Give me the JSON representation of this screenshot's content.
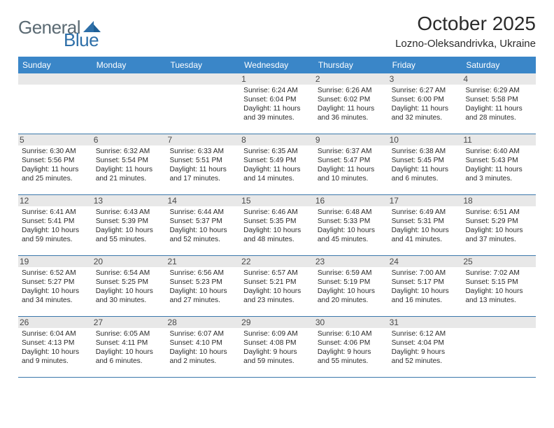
{
  "logo": {
    "general": "General",
    "blue": "Blue"
  },
  "title": "October 2025",
  "location": "Lozno-Oleksandrivka, Ukraine",
  "colors": {
    "header_bg": "#3a86c8",
    "header_fg": "#ffffff",
    "rule": "#3a77aa",
    "daynum_bg": "#e8e8e8",
    "text": "#2b2b2b",
    "logo_gray": "#5b6a73",
    "logo_blue": "#2e6fa8"
  },
  "dow": [
    "Sunday",
    "Monday",
    "Tuesday",
    "Wednesday",
    "Thursday",
    "Friday",
    "Saturday"
  ],
  "weeks": [
    [
      {
        "n": "",
        "sr": "",
        "ss": "",
        "dl": ""
      },
      {
        "n": "",
        "sr": "",
        "ss": "",
        "dl": ""
      },
      {
        "n": "",
        "sr": "",
        "ss": "",
        "dl": ""
      },
      {
        "n": "1",
        "sr": "6:24 AM",
        "ss": "6:04 PM",
        "dl": "11 hours and 39 minutes."
      },
      {
        "n": "2",
        "sr": "6:26 AM",
        "ss": "6:02 PM",
        "dl": "11 hours and 36 minutes."
      },
      {
        "n": "3",
        "sr": "6:27 AM",
        "ss": "6:00 PM",
        "dl": "11 hours and 32 minutes."
      },
      {
        "n": "4",
        "sr": "6:29 AM",
        "ss": "5:58 PM",
        "dl": "11 hours and 28 minutes."
      }
    ],
    [
      {
        "n": "5",
        "sr": "6:30 AM",
        "ss": "5:56 PM",
        "dl": "11 hours and 25 minutes."
      },
      {
        "n": "6",
        "sr": "6:32 AM",
        "ss": "5:54 PM",
        "dl": "11 hours and 21 minutes."
      },
      {
        "n": "7",
        "sr": "6:33 AM",
        "ss": "5:51 PM",
        "dl": "11 hours and 17 minutes."
      },
      {
        "n": "8",
        "sr": "6:35 AM",
        "ss": "5:49 PM",
        "dl": "11 hours and 14 minutes."
      },
      {
        "n": "9",
        "sr": "6:37 AM",
        "ss": "5:47 PM",
        "dl": "11 hours and 10 minutes."
      },
      {
        "n": "10",
        "sr": "6:38 AM",
        "ss": "5:45 PM",
        "dl": "11 hours and 6 minutes."
      },
      {
        "n": "11",
        "sr": "6:40 AM",
        "ss": "5:43 PM",
        "dl": "11 hours and 3 minutes."
      }
    ],
    [
      {
        "n": "12",
        "sr": "6:41 AM",
        "ss": "5:41 PM",
        "dl": "10 hours and 59 minutes."
      },
      {
        "n": "13",
        "sr": "6:43 AM",
        "ss": "5:39 PM",
        "dl": "10 hours and 55 minutes."
      },
      {
        "n": "14",
        "sr": "6:44 AM",
        "ss": "5:37 PM",
        "dl": "10 hours and 52 minutes."
      },
      {
        "n": "15",
        "sr": "6:46 AM",
        "ss": "5:35 PM",
        "dl": "10 hours and 48 minutes."
      },
      {
        "n": "16",
        "sr": "6:48 AM",
        "ss": "5:33 PM",
        "dl": "10 hours and 45 minutes."
      },
      {
        "n": "17",
        "sr": "6:49 AM",
        "ss": "5:31 PM",
        "dl": "10 hours and 41 minutes."
      },
      {
        "n": "18",
        "sr": "6:51 AM",
        "ss": "5:29 PM",
        "dl": "10 hours and 37 minutes."
      }
    ],
    [
      {
        "n": "19",
        "sr": "6:52 AM",
        "ss": "5:27 PM",
        "dl": "10 hours and 34 minutes."
      },
      {
        "n": "20",
        "sr": "6:54 AM",
        "ss": "5:25 PM",
        "dl": "10 hours and 30 minutes."
      },
      {
        "n": "21",
        "sr": "6:56 AM",
        "ss": "5:23 PM",
        "dl": "10 hours and 27 minutes."
      },
      {
        "n": "22",
        "sr": "6:57 AM",
        "ss": "5:21 PM",
        "dl": "10 hours and 23 minutes."
      },
      {
        "n": "23",
        "sr": "6:59 AM",
        "ss": "5:19 PM",
        "dl": "10 hours and 20 minutes."
      },
      {
        "n": "24",
        "sr": "7:00 AM",
        "ss": "5:17 PM",
        "dl": "10 hours and 16 minutes."
      },
      {
        "n": "25",
        "sr": "7:02 AM",
        "ss": "5:15 PM",
        "dl": "10 hours and 13 minutes."
      }
    ],
    [
      {
        "n": "26",
        "sr": "6:04 AM",
        "ss": "4:13 PM",
        "dl": "10 hours and 9 minutes."
      },
      {
        "n": "27",
        "sr": "6:05 AM",
        "ss": "4:11 PM",
        "dl": "10 hours and 6 minutes."
      },
      {
        "n": "28",
        "sr": "6:07 AM",
        "ss": "4:10 PM",
        "dl": "10 hours and 2 minutes."
      },
      {
        "n": "29",
        "sr": "6:09 AM",
        "ss": "4:08 PM",
        "dl": "9 hours and 59 minutes."
      },
      {
        "n": "30",
        "sr": "6:10 AM",
        "ss": "4:06 PM",
        "dl": "9 hours and 55 minutes."
      },
      {
        "n": "31",
        "sr": "6:12 AM",
        "ss": "4:04 PM",
        "dl": "9 hours and 52 minutes."
      },
      {
        "n": "",
        "sr": "",
        "ss": "",
        "dl": ""
      }
    ]
  ],
  "labels": {
    "sunrise": "Sunrise:",
    "sunset": "Sunset:",
    "daylight": "Daylight:"
  }
}
